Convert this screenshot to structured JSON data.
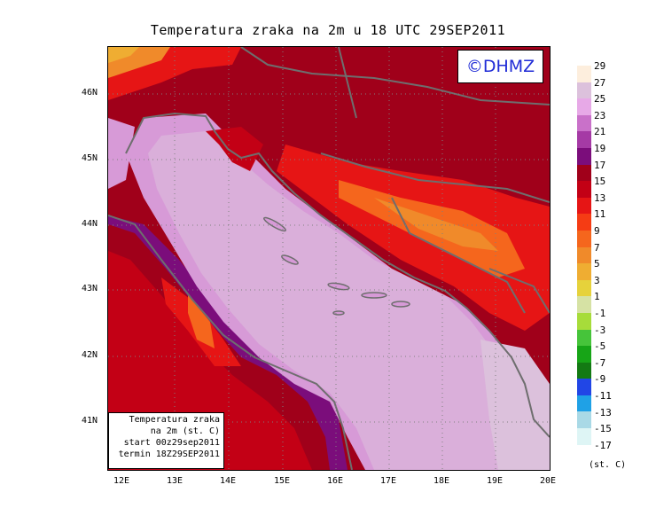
{
  "title": "Temperatura zraka na 2m u 18 UTC 29SEP2011",
  "logo": "©DHMZ",
  "info_box": {
    "line1": "Temperatura zraka",
    "line2": "na 2m (st. C)",
    "line3": "start 00z29sep2011",
    "line4": "termin 18Z29SEP2011"
  },
  "lat_labels": [
    "46N",
    "45N",
    "44N",
    "43N",
    "42N",
    "41N"
  ],
  "lon_labels": [
    "12E",
    "13E",
    "14E",
    "15E",
    "16E",
    "17E",
    "18E",
    "19E",
    "20E"
  ],
  "colorbar": {
    "labels": [
      "29",
      "27",
      "25",
      "23",
      "21",
      "19",
      "17",
      "15",
      "13",
      "11",
      "9",
      "7",
      "5",
      "3",
      "1",
      "-1",
      "-3",
      "-5",
      "-7",
      "-9",
      "-11",
      "-13",
      "-15",
      "-17"
    ],
    "colors": [
      "#fdeedd",
      "#dcc1dc",
      "#e7a9e7",
      "#c971c9",
      "#a53aa5",
      "#7b0d7b",
      "#a0001a",
      "#c30015",
      "#e61515",
      "#f53c14",
      "#f5661d",
      "#f08a2a",
      "#efad32",
      "#e6d23b",
      "#d6e2a4",
      "#a7dc3a",
      "#46c43a",
      "#17a517",
      "#137a13",
      "#2146e6",
      "#1fa1e6",
      "#a9d9e6",
      "#def5f5",
      "#f7fdfd"
    ],
    "unit": "(st. C)"
  }
}
